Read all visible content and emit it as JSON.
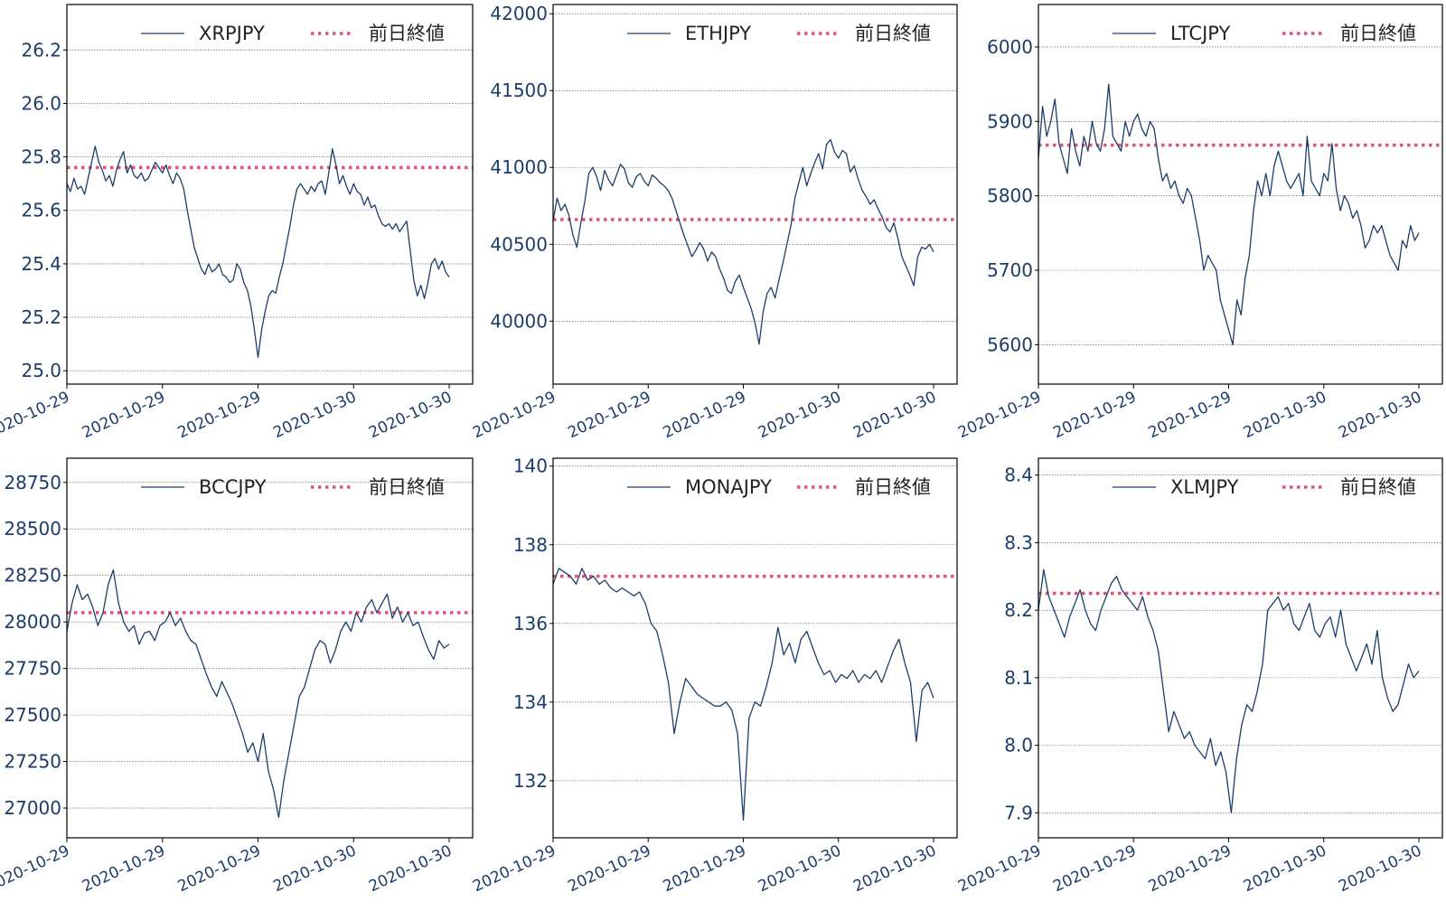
{
  "colors": {
    "price": "#1c3d6b",
    "prev_close": "#e0507a",
    "axis_text": "#1c3d6b",
    "grid": "#555555",
    "frame": "#000000"
  },
  "chart_data": [
    {
      "type": "line",
      "ylim": [
        24.95,
        26.37
      ],
      "yticks": [
        25.0,
        25.2,
        25.4,
        25.6,
        25.8,
        26.0,
        26.2
      ],
      "xticks": [
        "2020-10-29",
        "2020-10-29",
        "2020-10-29",
        "2020-10-30",
        "2020-10-30"
      ],
      "grid": "horizontal",
      "legend_position": "top-right",
      "legend": {
        "series": "XRPJPY",
        "reference": "前日終値"
      },
      "prev_close": 25.76,
      "series": {
        "name": "XRPJPY",
        "y": [
          25.7,
          25.67,
          25.72,
          25.68,
          25.69,
          25.66,
          25.72,
          25.78,
          25.84,
          25.78,
          25.75,
          25.71,
          25.73,
          25.69,
          25.75,
          25.79,
          25.82,
          25.74,
          25.77,
          25.73,
          25.72,
          25.74,
          25.71,
          25.72,
          25.75,
          25.78,
          25.76,
          25.74,
          25.77,
          25.73,
          25.7,
          25.74,
          25.72,
          25.68,
          25.6,
          25.53,
          25.46,
          25.42,
          25.38,
          25.36,
          25.4,
          25.37,
          25.38,
          25.4,
          25.36,
          25.35,
          25.33,
          25.34,
          25.4,
          25.38,
          25.33,
          25.3,
          25.24,
          25.15,
          25.05,
          25.15,
          25.22,
          25.28,
          25.3,
          25.29,
          25.35,
          25.4,
          25.47,
          25.54,
          25.62,
          25.68,
          25.7,
          25.68,
          25.66,
          25.69,
          25.67,
          25.7,
          25.71,
          25.66,
          25.74,
          25.83,
          25.77,
          25.7,
          25.73,
          25.69,
          25.66,
          25.7,
          25.67,
          25.66,
          25.62,
          25.65,
          25.61,
          25.62,
          25.58,
          25.55,
          25.54,
          25.55,
          25.53,
          25.55,
          25.52,
          25.54,
          25.56,
          25.45,
          25.34,
          25.28,
          25.32,
          25.27,
          25.33,
          25.4,
          25.42,
          25.38,
          25.41,
          25.37,
          25.35
        ]
      }
    },
    {
      "type": "line",
      "ylim": [
        39590,
        42060
      ],
      "yticks": [
        40000,
        40500,
        41000,
        41500,
        42000
      ],
      "xticks": [
        "2020-10-29",
        "2020-10-29",
        "2020-10-29",
        "2020-10-30",
        "2020-10-30"
      ],
      "grid": "horizontal",
      "legend_position": "top-right",
      "legend": {
        "series": "ETHJPY",
        "reference": "前日終値"
      },
      "prev_close": 40660,
      "series": {
        "name": "ETHJPY",
        "y": [
          40650,
          40800,
          40720,
          40760,
          40690,
          40560,
          40480,
          40640,
          40780,
          40960,
          41000,
          40940,
          40850,
          40980,
          40920,
          40880,
          40950,
          41020,
          40990,
          40900,
          40870,
          40940,
          40960,
          40910,
          40880,
          40950,
          40930,
          40900,
          40880,
          40850,
          40800,
          40720,
          40640,
          40560,
          40490,
          40420,
          40460,
          40510,
          40470,
          40390,
          40450,
          40420,
          40340,
          40280,
          40200,
          40180,
          40260,
          40300,
          40220,
          40150,
          40080,
          39980,
          39850,
          40060,
          40180,
          40220,
          40150,
          40270,
          40380,
          40500,
          40620,
          40800,
          40900,
          41000,
          40880,
          40960,
          41030,
          41090,
          40990,
          41150,
          41180,
          41100,
          41060,
          41110,
          41090,
          40970,
          41010,
          40920,
          40850,
          40810,
          40760,
          40790,
          40730,
          40680,
          40610,
          40580,
          40640,
          40540,
          40420,
          40360,
          40300,
          40230,
          40420,
          40480,
          40470,
          40500,
          40450
        ]
      }
    },
    {
      "type": "line",
      "ylim": [
        5547,
        6057
      ],
      "yticks": [
        5600,
        5700,
        5800,
        5900,
        6000
      ],
      "xticks": [
        "2020-10-29",
        "2020-10-29",
        "2020-10-29",
        "2020-10-30",
        "2020-10-30"
      ],
      "grid": "horizontal",
      "legend_position": "top-right",
      "legend": {
        "series": "LTCJPY",
        "reference": "前日終値"
      },
      "prev_close": 5868,
      "series": {
        "name": "LTCJPY",
        "y": [
          5850,
          5920,
          5880,
          5900,
          5930,
          5870,
          5850,
          5830,
          5890,
          5860,
          5840,
          5880,
          5860,
          5900,
          5870,
          5860,
          5890,
          5950,
          5880,
          5870,
          5860,
          5900,
          5880,
          5900,
          5910,
          5890,
          5880,
          5900,
          5890,
          5850,
          5820,
          5830,
          5810,
          5820,
          5800,
          5790,
          5810,
          5800,
          5770,
          5740,
          5700,
          5720,
          5710,
          5700,
          5660,
          5640,
          5620,
          5600,
          5660,
          5640,
          5690,
          5720,
          5780,
          5820,
          5800,
          5830,
          5800,
          5840,
          5860,
          5840,
          5820,
          5810,
          5820,
          5830,
          5800,
          5880,
          5820,
          5810,
          5800,
          5830,
          5820,
          5870,
          5810,
          5780,
          5800,
          5790,
          5770,
          5780,
          5760,
          5730,
          5740,
          5760,
          5750,
          5760,
          5740,
          5720,
          5710,
          5700,
          5740,
          5730,
          5760,
          5740,
          5750
        ]
      }
    },
    {
      "type": "line",
      "ylim": [
        26840,
        28880
      ],
      "yticks": [
        27000,
        27250,
        27500,
        27750,
        28000,
        28250,
        28500,
        28750
      ],
      "xticks": [
        "2020-10-29",
        "2020-10-29",
        "2020-10-29",
        "2020-10-30",
        "2020-10-30"
      ],
      "grid": "horizontal",
      "legend_position": "top-right",
      "legend": {
        "series": "BCCJPY",
        "reference": "前日終値"
      },
      "prev_close": 28050,
      "series": {
        "name": "BCCJPY",
        "y": [
          27950,
          28100,
          28200,
          28120,
          28150,
          28080,
          27980,
          28050,
          28200,
          28280,
          28100,
          28000,
          27950,
          27980,
          27880,
          27940,
          27950,
          27900,
          27980,
          28000,
          28050,
          27980,
          28020,
          27950,
          27900,
          27880,
          27800,
          27720,
          27650,
          27600,
          27680,
          27620,
          27560,
          27480,
          27400,
          27300,
          27350,
          27250,
          27400,
          27200,
          27100,
          26950,
          27150,
          27300,
          27450,
          27600,
          27650,
          27750,
          27850,
          27900,
          27880,
          27780,
          27850,
          27950,
          28000,
          27950,
          28050,
          28000,
          28080,
          28120,
          28050,
          28100,
          28150,
          28020,
          28080,
          28000,
          28050,
          27980,
          28000,
          27920,
          27850,
          27800,
          27900,
          27860,
          27880
        ]
      }
    },
    {
      "type": "line",
      "ylim": [
        130.55,
        140.2
      ],
      "yticks": [
        132,
        134,
        136,
        138,
        140
      ],
      "xticks": [
        "2020-10-29",
        "2020-10-29",
        "2020-10-29",
        "2020-10-30",
        "2020-10-30"
      ],
      "grid": "horizontal",
      "legend_position": "top-right",
      "legend": {
        "series": "MONAJPY",
        "reference": "前日終値"
      },
      "prev_close": 137.2,
      "series": {
        "name": "MONAJPY",
        "y": [
          137.0,
          137.4,
          137.3,
          137.2,
          137.0,
          137.4,
          137.1,
          137.2,
          137.0,
          137.1,
          136.9,
          136.8,
          136.9,
          136.8,
          136.7,
          136.8,
          136.5,
          136.0,
          135.8,
          135.2,
          134.5,
          133.2,
          134.0,
          134.6,
          134.4,
          134.2,
          134.1,
          134.0,
          133.9,
          133.9,
          134.0,
          133.8,
          133.2,
          131.0,
          133.6,
          134.0,
          133.9,
          134.4,
          135.0,
          135.9,
          135.2,
          135.5,
          135.0,
          135.6,
          135.8,
          135.4,
          135.0,
          134.7,
          134.8,
          134.5,
          134.7,
          134.6,
          134.8,
          134.5,
          134.7,
          134.6,
          134.8,
          134.5,
          134.9,
          135.3,
          135.6,
          135.0,
          134.5,
          133.0,
          134.3,
          134.5,
          134.1
        ]
      }
    },
    {
      "type": "line",
      "ylim": [
        7.863,
        8.425
      ],
      "yticks": [
        7.9,
        8.0,
        8.1,
        8.2,
        8.3,
        8.4
      ],
      "xticks": [
        "2020-10-29",
        "2020-10-29",
        "2020-10-29",
        "2020-10-30",
        "2020-10-30"
      ],
      "grid": "horizontal",
      "legend_position": "top-right",
      "legend": {
        "series": "XLMJPY",
        "reference": "前日終値"
      },
      "prev_close": 8.225,
      "series": {
        "name": "XLMJPY",
        "y": [
          8.2,
          8.26,
          8.22,
          8.2,
          8.18,
          8.16,
          8.19,
          8.21,
          8.23,
          8.2,
          8.18,
          8.17,
          8.2,
          8.22,
          8.24,
          8.25,
          8.23,
          8.22,
          8.21,
          8.2,
          8.22,
          8.19,
          8.17,
          8.14,
          8.08,
          8.02,
          8.05,
          8.03,
          8.01,
          8.02,
          8.0,
          7.99,
          7.98,
          8.01,
          7.97,
          7.99,
          7.96,
          7.9,
          7.98,
          8.03,
          8.06,
          8.05,
          8.08,
          8.12,
          8.2,
          8.21,
          8.22,
          8.2,
          8.21,
          8.18,
          8.17,
          8.19,
          8.21,
          8.17,
          8.16,
          8.18,
          8.19,
          8.16,
          8.2,
          8.15,
          8.13,
          8.11,
          8.13,
          8.15,
          8.12,
          8.17,
          8.1,
          8.07,
          8.05,
          8.06,
          8.09,
          8.12,
          8.1,
          8.11
        ]
      }
    }
  ]
}
